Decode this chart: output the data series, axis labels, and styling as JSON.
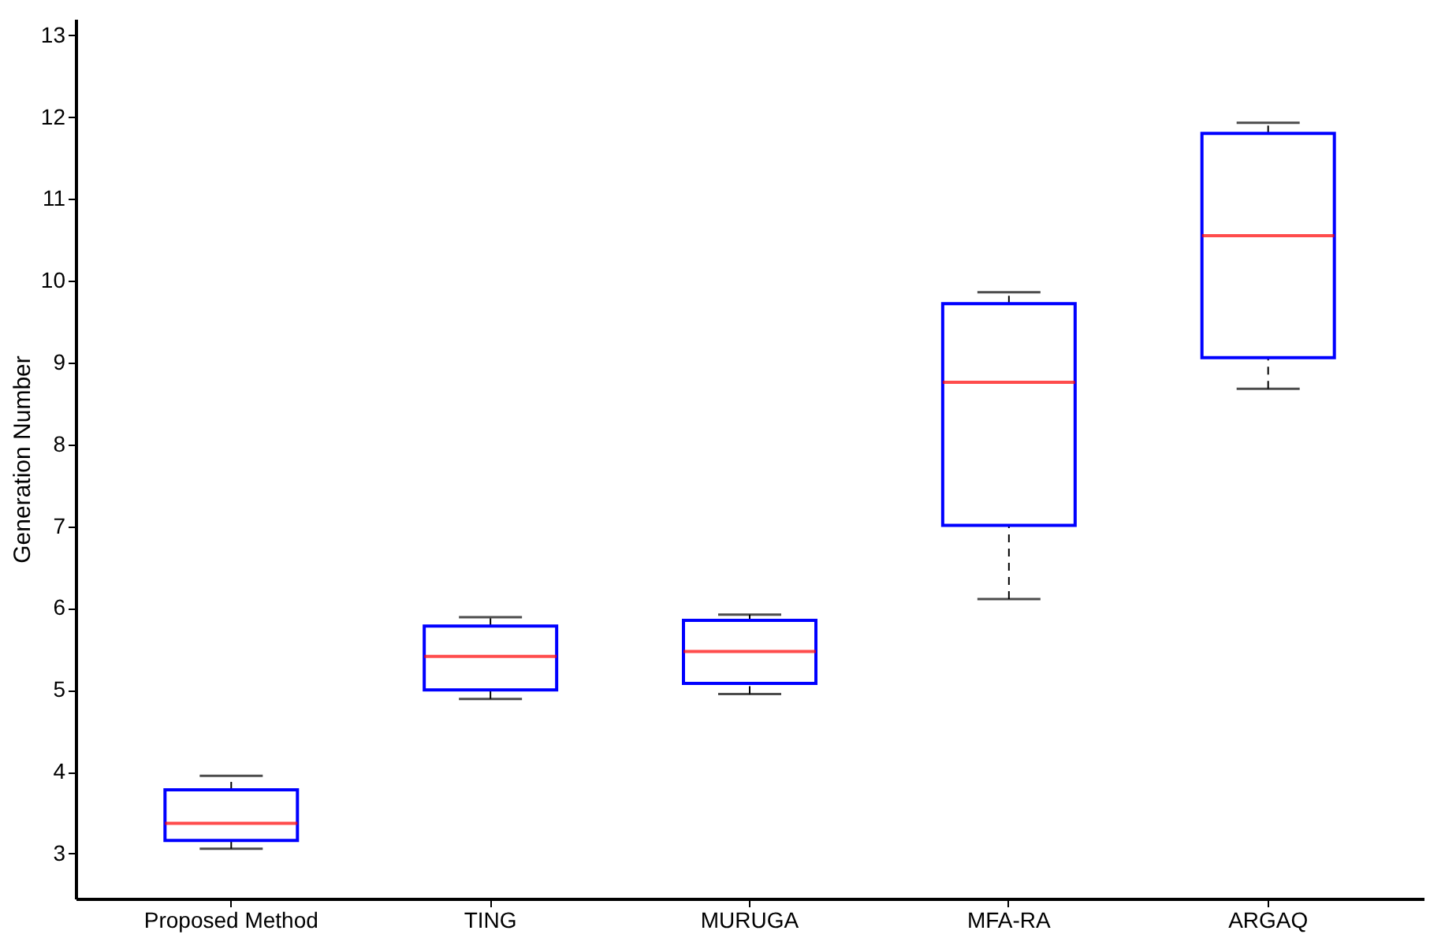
{
  "chart_data": {
    "type": "box",
    "ylabel": "Generation Number",
    "categories": [
      "Proposed Method",
      "TING",
      "MURUGA",
      "MFA-RA",
      "ARGAQ"
    ],
    "ylim": [
      2.45,
      13.2
    ],
    "yticks": [
      3,
      4,
      5,
      6,
      7,
      8,
      9,
      10,
      11,
      12,
      13
    ],
    "grid": false,
    "series": [
      {
        "color": "#0000ff",
        "boxes": [
          {
            "low": 3.06,
            "q1": 3.16,
            "median": 3.37,
            "q3": 3.78,
            "high": 3.95
          },
          {
            "low": 4.89,
            "q1": 5.0,
            "median": 5.41,
            "q3": 5.78,
            "high": 5.89
          },
          {
            "low": 4.95,
            "q1": 5.08,
            "median": 5.47,
            "q3": 5.85,
            "high": 5.92
          },
          {
            "low": 6.11,
            "q1": 7.01,
            "median": 8.76,
            "q3": 9.72,
            "high": 9.86
          },
          {
            "low": 8.68,
            "q1": 9.06,
            "median": 10.55,
            "q3": 11.8,
            "high": 11.93
          }
        ]
      }
    ]
  }
}
